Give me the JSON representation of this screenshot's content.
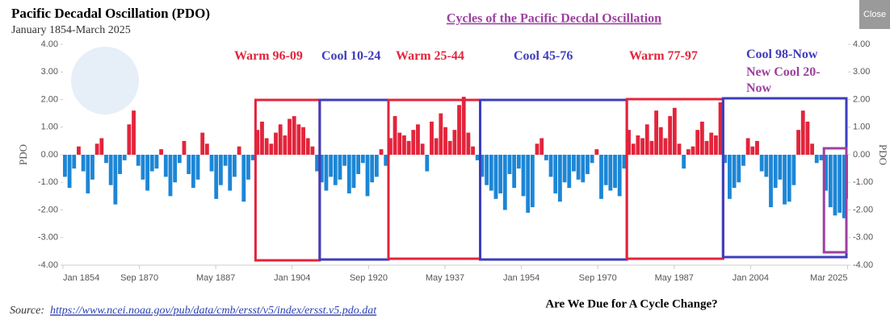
{
  "chart_data": {
    "type": "bar",
    "title": "Pacific Decadal Oscillation (PDO)",
    "subtitle": "January 1854-March 2025",
    "link_title": "Cycles of the Pacific Decdal Oscillation",
    "close_button": "Close",
    "ylabel": "PDO",
    "y2label": "PDO",
    "source_prefix": "Source:",
    "source_url": "https://www.ncei.noaa.gov/pub/data/cmb/ersst/v5/index/ersst.v5.pdo.dat",
    "question": "Are We Due for A Cycle Change?",
    "color_positive": "#e3243b",
    "color_negative": "#1c86d6",
    "grid": false,
    "xlim": [
      1854,
      2025.25
    ],
    "xticks": [
      {
        "value": 1854,
        "label": "Jan 1854"
      },
      {
        "value": 1870.67,
        "label": "Sep 1870"
      },
      {
        "value": 1887.33,
        "label": "May 1887"
      },
      {
        "value": 1904,
        "label": "Jan 1904"
      },
      {
        "value": 1920.67,
        "label": "Sep 1920"
      },
      {
        "value": 1937.33,
        "label": "May 1937"
      },
      {
        "value": 1954,
        "label": "Jan 1954"
      },
      {
        "value": 1970.67,
        "label": "Sep 1970"
      },
      {
        "value": 1987.33,
        "label": "May 1987"
      },
      {
        "value": 2004,
        "label": "Jan 2004"
      },
      {
        "value": 2025.17,
        "label": "Mar 2025"
      }
    ],
    "ylim": [
      -4,
      4
    ],
    "yticks": [
      {
        "value": 4,
        "label": "4.00"
      },
      {
        "value": 3,
        "label": "3.00"
      },
      {
        "value": 2,
        "label": "2.00"
      },
      {
        "value": 1,
        "label": "1.00"
      },
      {
        "value": 0,
        "label": "0.00"
      },
      {
        "value": -1,
        "label": "-1.00"
      },
      {
        "value": -2,
        "label": "-2.00"
      },
      {
        "value": -3,
        "label": "-3.00"
      },
      {
        "value": -4,
        "label": "-4.00"
      }
    ],
    "y2lim": [
      -4,
      4
    ],
    "y2ticks": [
      {
        "value": 4,
        "label": "4.00"
      },
      {
        "value": 3,
        "label": "3.00"
      },
      {
        "value": 2,
        "label": "2.00"
      },
      {
        "value": 1,
        "label": "1.00"
      },
      {
        "value": 0,
        "label": "0.00"
      },
      {
        "value": -1,
        "label": "-1.00"
      },
      {
        "value": -2,
        "label": "-2.00"
      },
      {
        "value": -3,
        "label": "-3.00"
      },
      {
        "value": -4,
        "label": "-4.00"
      }
    ],
    "x": [
      1854,
      1855,
      1856,
      1857,
      1858,
      1859,
      1860,
      1861,
      1862,
      1863,
      1864,
      1865,
      1866,
      1867,
      1868,
      1869,
      1870,
      1871,
      1872,
      1873,
      1874,
      1875,
      1876,
      1877,
      1878,
      1879,
      1880,
      1881,
      1882,
      1883,
      1884,
      1885,
      1886,
      1887,
      1888,
      1889,
      1890,
      1891,
      1892,
      1893,
      1894,
      1895,
      1896,
      1897,
      1898,
      1899,
      1900,
      1901,
      1902,
      1903,
      1904,
      1905,
      1906,
      1907,
      1908,
      1909,
      1910,
      1911,
      1912,
      1913,
      1914,
      1915,
      1916,
      1917,
      1918,
      1919,
      1920,
      1921,
      1922,
      1923,
      1924,
      1925,
      1926,
      1927,
      1928,
      1929,
      1930,
      1931,
      1932,
      1933,
      1934,
      1935,
      1936,
      1937,
      1938,
      1939,
      1940,
      1941,
      1942,
      1943,
      1944,
      1945,
      1946,
      1947,
      1948,
      1949,
      1950,
      1951,
      1952,
      1953,
      1954,
      1955,
      1956,
      1957,
      1958,
      1959,
      1960,
      1961,
      1962,
      1963,
      1964,
      1965,
      1966,
      1967,
      1968,
      1969,
      1970,
      1971,
      1972,
      1973,
      1974,
      1975,
      1976,
      1977,
      1978,
      1979,
      1980,
      1981,
      1982,
      1983,
      1984,
      1985,
      1986,
      1987,
      1988,
      1989,
      1990,
      1991,
      1992,
      1993,
      1994,
      1995,
      1996,
      1997,
      1998,
      1999,
      2000,
      2001,
      2002,
      2003,
      2004,
      2005,
      2006,
      2007,
      2008,
      2009,
      2010,
      2011,
      2012,
      2013,
      2014,
      2015,
      2016,
      2017,
      2018,
      2019,
      2020,
      2021,
      2022,
      2023,
      2024,
      2025
    ],
    "values": [
      -0.8,
      -1.2,
      -0.5,
      0.3,
      -0.6,
      -1.4,
      -0.9,
      0.4,
      0.6,
      -0.3,
      -1.1,
      -1.8,
      -0.7,
      -0.2,
      1.1,
      1.6,
      -0.4,
      -0.9,
      -1.3,
      -0.6,
      -0.5,
      0.2,
      -0.8,
      -1.5,
      -1.0,
      -0.3,
      0.5,
      -0.7,
      -1.2,
      -0.9,
      0.8,
      0.4,
      -0.6,
      -1.6,
      -1.1,
      -0.4,
      -1.3,
      -0.8,
      0.3,
      -1.7,
      -0.9,
      -0.2,
      0.9,
      1.2,
      0.6,
      0.4,
      0.8,
      1.1,
      0.7,
      1.3,
      1.4,
      1.1,
      1.0,
      0.6,
      0.3,
      -0.6,
      -1.0,
      -1.3,
      -0.8,
      -1.1,
      -0.9,
      -0.4,
      -1.4,
      -1.2,
      -0.7,
      -0.3,
      -1.5,
      -1.0,
      -0.8,
      0.2,
      -0.4,
      0.6,
      1.4,
      0.8,
      0.7,
      0.5,
      0.9,
      1.1,
      0.4,
      -0.6,
      1.2,
      0.6,
      1.5,
      1.0,
      0.5,
      0.9,
      1.8,
      2.1,
      0.8,
      0.3,
      -0.2,
      -0.8,
      -1.1,
      -1.3,
      -1.6,
      -1.4,
      -2.0,
      -0.7,
      -1.2,
      -0.5,
      -1.5,
      -2.1,
      -1.9,
      0.4,
      0.6,
      -0.2,
      -0.8,
      -1.4,
      -1.7,
      -1.0,
      -1.2,
      -0.6,
      -0.9,
      -1.0,
      -0.7,
      -0.3,
      0.2,
      -1.6,
      -1.1,
      -1.3,
      -1.2,
      -1.5,
      -0.5,
      0.9,
      0.4,
      0.7,
      0.6,
      1.1,
      0.5,
      1.6,
      1.0,
      0.6,
      1.4,
      1.7,
      0.4,
      -0.5,
      0.2,
      0.3,
      0.9,
      1.2,
      0.5,
      0.8,
      0.7,
      1.9,
      -0.3,
      -1.6,
      -1.2,
      -1.0,
      -0.4,
      0.6,
      0.3,
      0.5,
      -0.6,
      -0.8,
      -1.9,
      -1.2,
      -0.9,
      -1.8,
      -1.7,
      -1.1,
      0.9,
      1.6,
      1.2,
      0.4,
      -0.3,
      -0.2,
      -1.3,
      -1.9,
      -2.2,
      -2.1,
      -2.3,
      -1.6
    ],
    "periods": [
      {
        "label": "Warm 96-09",
        "color": "#e3243b",
        "start": 1896,
        "end": 1909
      },
      {
        "label": "Cool 10-24",
        "color": "#3d3dbd",
        "start": 1910,
        "end": 1924
      },
      {
        "label": "Warm 25-44",
        "color": "#e3243b",
        "start": 1925,
        "end": 1944
      },
      {
        "label": "Cool 45-76",
        "color": "#3d3dbd",
        "start": 1945,
        "end": 1976
      },
      {
        "label": "Warm 77-97",
        "color": "#e3243b",
        "start": 1977,
        "end": 1997
      },
      {
        "label": "Cool 98-Now",
        "color": "#3d3dbd",
        "start": 1998,
        "end": 2025
      },
      {
        "label": "New Cool 20-Now",
        "color": "#9c40a0",
        "start": 2020,
        "end": 2025
      }
    ]
  }
}
